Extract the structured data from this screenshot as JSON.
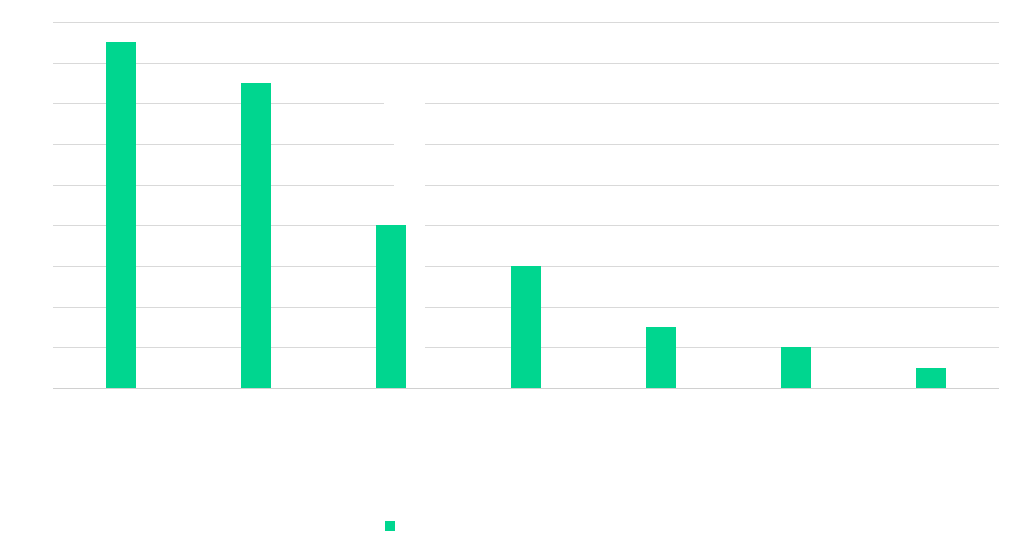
{
  "chart_data": {
    "type": "bar",
    "categories": [
      "",
      "",
      "",
      "",
      "",
      "",
      ""
    ],
    "series": [
      {
        "name": "",
        "color": "#00d68f",
        "values": [
          85,
          75,
          40,
          30,
          15,
          10,
          5
        ]
      }
    ],
    "ylim": [
      0,
      90
    ],
    "y_gridlines": [
      0,
      10,
      20,
      30,
      40,
      50,
      60,
      70,
      80,
      90
    ],
    "grid": true,
    "legend": "bottom",
    "title": "",
    "xlabel": "",
    "ylabel": "",
    "gridline_color": "#d9d9d9",
    "background_color": "#ffffff"
  }
}
